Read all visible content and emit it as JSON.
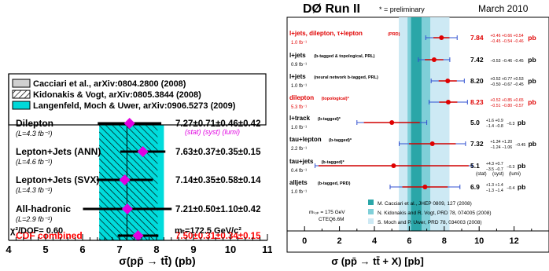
{
  "chart_data": [
    {
      "type": "scatter",
      "title": "",
      "xlabel": "σ(pp̄ → tt̄) (pb)",
      "ylabel": "",
      "xlim": [
        4,
        11
      ],
      "x_ticks": [
        "4",
        "5",
        "6",
        "7",
        "8",
        "9",
        "10",
        "11"
      ],
      "legend": [
        {
          "label": "Cacciari et al., arXiv:0804.2800 (2008)",
          "fill": "#d0d0d0"
        },
        {
          "label": "Kidonakis & Vogt, arXiv:0805.3844 (2008)",
          "fill": "hatch"
        },
        {
          "label": "Langenfeld, Moch & Uwer, arXiv:0906.5273 (2009)",
          "fill": "#00d8d8"
        }
      ],
      "theory_band": {
        "lo": 6.45,
        "hi": 8.2,
        "central": 7.2
      },
      "measurements": [
        {
          "name": "Dilepton",
          "lumi": "(L=4.3 fb⁻¹)",
          "value": 7.27,
          "stat": 0.71,
          "tot": 0.86,
          "result": "7.27±0.71±0.46±0.42",
          "sub_note": "(stat) (syst) (lumi)",
          "color": "#000000"
        },
        {
          "name": "Lepton+Jets (ANN)",
          "lumi": "(L=4.6 fb⁻¹)",
          "value": 7.63,
          "stat": 0.37,
          "tot": 0.61,
          "result": "7.63±0.37±0.35±0.15",
          "color": "#000000"
        },
        {
          "name": "Lepton+Jets (SVX)",
          "lumi": "(L=4.3 fb⁻¹)",
          "value": 7.14,
          "stat": 0.35,
          "tot": 0.76,
          "result": "7.14±0.35±0.58±0.14",
          "color": "#000000"
        },
        {
          "name": "All-hadronic",
          "lumi": "(L=2.9 fb⁻¹)",
          "value": 7.21,
          "stat": 0.5,
          "tot": 1.2,
          "result": "7.21±0.50±1.10±0.42",
          "color": "#000000"
        },
        {
          "name": "CDF combined",
          "lumi": "",
          "value": 7.5,
          "stat": 0.31,
          "tot": 0.55,
          "result": "7.50±0.31±0.34±0.15",
          "color": "#ff0000"
        }
      ],
      "footer_left": "χ²/DOF= 0.60",
      "footer_right": "mₜ=172.5 GeV/c²"
    },
    {
      "type": "scatter",
      "title": "DØ Run II",
      "subtitle": "* = preliminary",
      "date": "March 2010",
      "xlabel": "σ (pp̄ → tt̄ + X) [pb]",
      "ylabel": "",
      "xlim": [
        -1,
        14
      ],
      "x_ticks": [
        "0",
        "2",
        "4",
        "6",
        "8",
        "10",
        "12"
      ],
      "tick_values": [
        0,
        2,
        4,
        6,
        8,
        10,
        12
      ],
      "bands": {
        "moch": {
          "lo": 5.4,
          "hi": 8.3
        },
        "kidonakis": {
          "lo": 5.9,
          "hi": 7.2
        },
        "cacciari": {
          "lo": 6.1,
          "hi": 6.7
        }
      },
      "measurements": [
        {
          "name": "l+jets, dilepton, τ+lepton",
          "tag": "(PRD)",
          "lumi": "1.0 fb⁻¹",
          "value": 7.84,
          "stat": 0.46,
          "tot": 0.9,
          "val_text": "7.84",
          "unc_up": "+0.46 +0.66 +0.54",
          "unc_dn": "−0.45 −0.54 −0.46",
          "unit": "pb",
          "color": "#e00000"
        },
        {
          "name": "l+jets",
          "tag": "(b-tagged & topological, PRL)",
          "lumi": "0.9 fb⁻¹",
          "value": 7.42,
          "stat": 0.53,
          "tot": 0.9,
          "val_text": "7.42",
          "unc_single": "−0.53 −0.46 −0.45",
          "unit": "pb",
          "color": "#000000"
        },
        {
          "name": "l+jets",
          "tag": "(neural network b-tagged, PRL)",
          "lumi": "1.0 fb⁻¹",
          "value": 8.2,
          "stat": 0.52,
          "tot": 0.95,
          "val_text": "8.20",
          "unc_up": "+0.52 +0.77 +0.53",
          "unc_dn": "−0.50 −0.67 −0.45",
          "unit": "pb",
          "color": "#000000"
        },
        {
          "name": "dilepton",
          "tag": "(topological)*",
          "lumi": "5.3 fb⁻¹",
          "value": 8.23,
          "stat": 0.52,
          "tot": 1.1,
          "val_text": "8.23",
          "unc_up": "+0.52 +0.85 +0.65",
          "unc_dn": "−0.51 −0.80 −0.57",
          "unit": "pb",
          "color": "#e00000"
        },
        {
          "name": "l+track",
          "tag": "(b-tagged)*",
          "lumi": "1.0 fb⁻¹",
          "value": 5.0,
          "stat": 1.6,
          "tot": 2.0,
          "val_text": "5.0",
          "unc_up": "+1.6 +0.9",
          "unc_dn": "−1.4 −0.8",
          "unc_extra": "−0.3",
          "unit": "pb",
          "color": "#000000"
        },
        {
          "name": "tau+lepton",
          "tag": "(b-tagged)*",
          "lumi": "2.2 fb⁻¹",
          "value": 7.32,
          "stat": 1.34,
          "tot": 1.9,
          "val_text": "7.32",
          "unc_up": "+1.34 +1.20",
          "unc_dn": "−1.24 −1.06",
          "unc_extra": "−0.45",
          "unit": "pb",
          "color": "#000000"
        },
        {
          "name": "tau+jets",
          "tag": "(b-tagged)*",
          "lumi": "0.4 fb⁻¹",
          "value": 5.1,
          "stat": 4.3,
          "tot": 4.5,
          "val_text": "5.1",
          "unc_up": "+4.3 +0.7",
          "unc_dn": "−3.5 −0.7",
          "unc_extra": "−0.3",
          "unit": "pb",
          "color": "#000000"
        },
        {
          "name": "alljets",
          "tag": "(b-tagged, PRD)",
          "lumi": "1.0 fb⁻¹",
          "value": 6.9,
          "stat": 1.3,
          "tot": 2.0,
          "val_text": "6.9",
          "unc_up": "+1.3 +1.4",
          "unc_dn": "−1.3 −1.4",
          "unc_extra": "−0.4",
          "unit": "pb",
          "color": "#000000"
        }
      ],
      "col_notes": [
        "(stat)",
        "(syst)",
        "(lumi)"
      ],
      "legend": [
        {
          "label": "M. Cacciari et al., JHEP 0809, 127 (2008)",
          "color": "#2aa6a8"
        },
        {
          "label": "N. Kidonakis and R. Vogt, PRD 78, 074005 (2008)",
          "color": "#7fcfd8"
        },
        {
          "label": "S. Moch and P. Uwer, PRD 78, 034003 (2008)",
          "color": "#cde9f4"
        }
      ],
      "mass_note_line1": "mₜₒₚ = 175 GeV",
      "mass_note_line2": "CTEQ6.6M"
    }
  ]
}
